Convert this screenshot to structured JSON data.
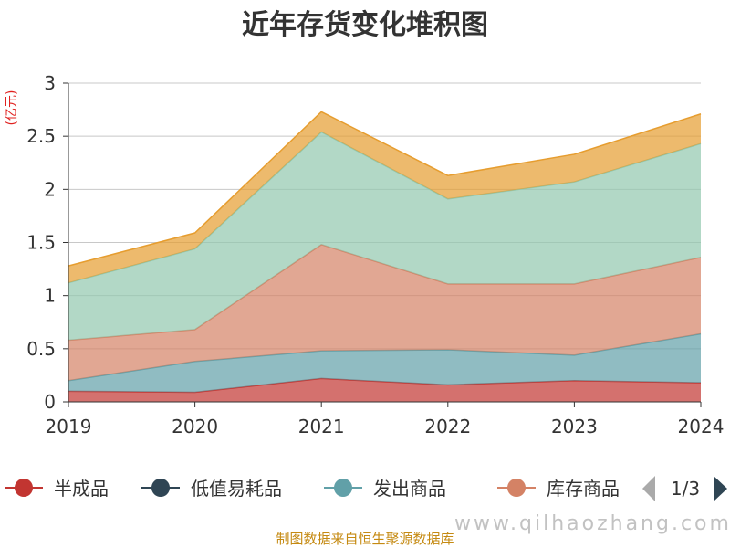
{
  "chart_data": {
    "type": "area",
    "stacked": true,
    "title": "近年存货变化堆积图",
    "ylabel": "(亿元)",
    "x": [
      "2019",
      "2020",
      "2021",
      "2022",
      "2023",
      "2024"
    ],
    "ylim": [
      0,
      3
    ],
    "yticks": [
      0,
      0.5,
      1,
      1.5,
      2,
      2.5,
      3
    ],
    "ytick_labels": [
      "0",
      "0.5",
      "1",
      "1.5",
      "2",
      "2.5",
      "3"
    ],
    "grid": true,
    "series": [
      {
        "name": "半成品",
        "color": "#c23531",
        "values": [
          0.1,
          0.09,
          0.22,
          0.16,
          0.2,
          0.18
        ]
      },
      {
        "name": "发出商品",
        "color": "#61a0a8",
        "values": [
          0.1,
          0.29,
          0.26,
          0.33,
          0.24,
          0.46
        ]
      },
      {
        "name": "库存商品",
        "color": "#d48265",
        "values": [
          0.38,
          0.3,
          1.0,
          0.62,
          0.67,
          0.72
        ]
      },
      {
        "name": "",
        "color": "#91c7ae",
        "values": [
          0.54,
          0.76,
          1.06,
          0.8,
          0.96,
          1.07
        ]
      },
      {
        "name": "",
        "color": "#e69d2f",
        "values": [
          0.16,
          0.15,
          0.19,
          0.22,
          0.26,
          0.28
        ]
      }
    ],
    "legend": {
      "position": "bottom",
      "items": [
        {
          "label": "半成品",
          "color": "#c23531"
        },
        {
          "label": "低值易耗品",
          "color": "#2f4554"
        },
        {
          "label": "发出商品",
          "color": "#61a0a8"
        },
        {
          "label": "库存商品",
          "color": "#d48265"
        }
      ],
      "page": "1/3"
    }
  },
  "footer": {
    "source": "制图数据来自恒生聚源数据库",
    "watermark": "www.qilhaozhang.com"
  }
}
